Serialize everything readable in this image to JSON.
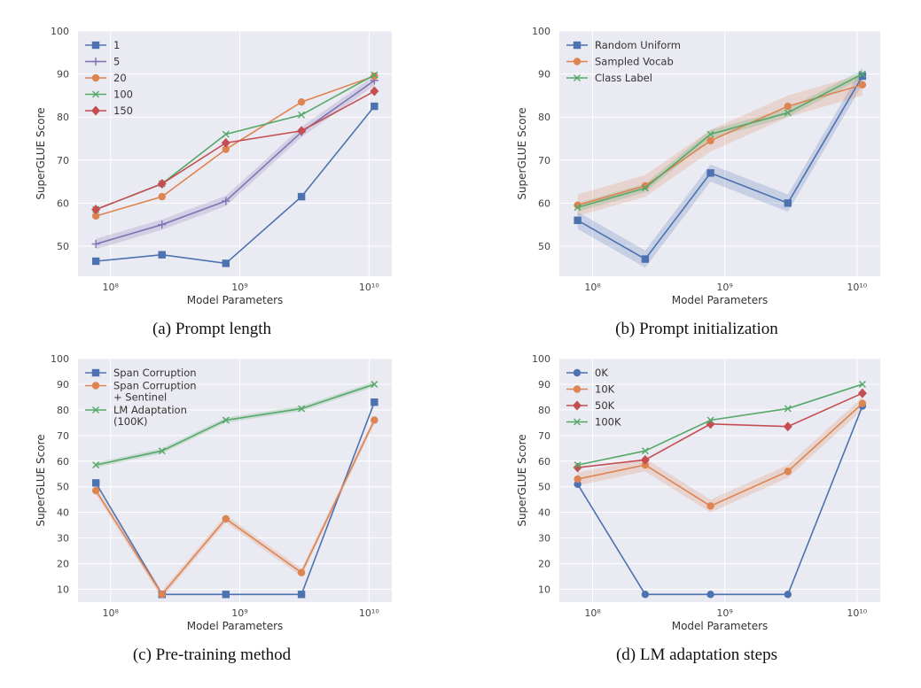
{
  "chart_data": [
    {
      "type": "line",
      "caption": "(a) Prompt length",
      "xlabel": "Model Parameters",
      "ylabel": "SuperGLUE Score",
      "xscale": "log",
      "x": [
        77000000,
        250000000,
        780000000,
        3000000000,
        11000000000
      ],
      "x_ticks": [
        {
          "value": 100000000,
          "label": "10⁸"
        },
        {
          "value": 1000000000,
          "label": "10⁹"
        },
        {
          "value": 10000000000,
          "label": "10¹⁰"
        }
      ],
      "ylim": [
        43,
        100
      ],
      "y_ticks": [
        50,
        60,
        70,
        80,
        90,
        100
      ],
      "grid": true,
      "legend_position": "top-left",
      "series": [
        {
          "name": "1",
          "marker": "square",
          "color": "#4c72b0",
          "values": [
            46.5,
            48,
            46,
            61.5,
            82.5
          ]
        },
        {
          "name": "5",
          "marker": "plus",
          "color": "#8172b3",
          "band": 1.2,
          "values": [
            50.5,
            55,
            60.5,
            76.5,
            88.5
          ]
        },
        {
          "name": "20",
          "marker": "circle",
          "color": "#dd8452",
          "values": [
            57,
            61.5,
            72.5,
            83.5,
            89.5
          ]
        },
        {
          "name": "100",
          "marker": "x",
          "color": "#55a868",
          "values": [
            58.5,
            64.5,
            76,
            80.5,
            89.8
          ]
        },
        {
          "name": "150",
          "marker": "diamond",
          "color": "#c44e52",
          "values": [
            58.5,
            64.5,
            74,
            76.8,
            86
          ]
        }
      ]
    },
    {
      "type": "line",
      "caption": "(b) Prompt initialization",
      "xlabel": "Model Parameters",
      "ylabel": "SuperGLUE Score",
      "xscale": "log",
      "x": [
        77000000,
        250000000,
        780000000,
        3000000000,
        11000000000
      ],
      "x_ticks": [
        {
          "value": 100000000,
          "label": "10⁸"
        },
        {
          "value": 1000000000,
          "label": "10⁹"
        },
        {
          "value": 10000000000,
          "label": "10¹⁰"
        }
      ],
      "ylim": [
        43,
        100
      ],
      "y_ticks": [
        50,
        60,
        70,
        80,
        90,
        100
      ],
      "grid": true,
      "legend_position": "top-left",
      "series": [
        {
          "name": "Random Uniform",
          "marker": "square",
          "color": "#4c72b0",
          "band": 2,
          "values": [
            56,
            47,
            67,
            60,
            89.5
          ]
        },
        {
          "name": "Sampled Vocab",
          "marker": "circle",
          "color": "#dd8452",
          "band": 2.5,
          "values": [
            59.5,
            64,
            74.5,
            82.5,
            87.5
          ]
        },
        {
          "name": "Class Label",
          "marker": "x",
          "color": "#55a868",
          "band": 1,
          "values": [
            59,
            63.5,
            76,
            81,
            90
          ]
        }
      ]
    },
    {
      "type": "line",
      "caption": "(c) Pre-training method",
      "xlabel": "Model Parameters",
      "ylabel": "SuperGLUE Score",
      "xscale": "log",
      "x": [
        77000000,
        250000000,
        780000000,
        3000000000,
        11000000000
      ],
      "x_ticks": [
        {
          "value": 100000000,
          "label": "10⁸"
        },
        {
          "value": 1000000000,
          "label": "10⁹"
        },
        {
          "value": 10000000000,
          "label": "10¹⁰"
        }
      ],
      "ylim": [
        5,
        100
      ],
      "y_ticks": [
        10,
        20,
        30,
        40,
        50,
        60,
        70,
        80,
        90,
        100
      ],
      "grid": true,
      "legend_position": "top-left",
      "series": [
        {
          "name": "Span Corruption",
          "marker": "square",
          "color": "#4c72b0",
          "values": [
            51.5,
            8,
            8,
            8,
            83
          ]
        },
        {
          "name": "Span Corruption\n+ Sentinel",
          "marker": "circle",
          "color": "#dd8452",
          "band": 1.5,
          "values": [
            48.5,
            8,
            37.5,
            16.5,
            76
          ]
        },
        {
          "name": "LM Adaptation\n(100K)",
          "marker": "x",
          "color": "#55a868",
          "band": 1,
          "values": [
            58.5,
            64,
            76,
            80.5,
            90
          ]
        }
      ]
    },
    {
      "type": "line",
      "caption": "(d) LM adaptation steps",
      "xlabel": "Model Parameters",
      "ylabel": "SuperGLUE Score",
      "xscale": "log",
      "x": [
        77000000,
        250000000,
        780000000,
        3000000000,
        11000000000
      ],
      "x_ticks": [
        {
          "value": 100000000,
          "label": "10⁸"
        },
        {
          "value": 1000000000,
          "label": "10⁹"
        },
        {
          "value": 10000000000,
          "label": "10¹⁰"
        }
      ],
      "ylim": [
        5,
        100
      ],
      "y_ticks": [
        10,
        20,
        30,
        40,
        50,
        60,
        70,
        80,
        90,
        100
      ],
      "grid": true,
      "legend_position": "top-left",
      "series": [
        {
          "name": "0K",
          "marker": "circle",
          "color": "#4c72b0",
          "values": [
            51,
            8,
            8,
            8,
            81.5
          ]
        },
        {
          "name": "10K",
          "marker": "circle",
          "color": "#dd8452",
          "band": 2.5,
          "values": [
            53,
            58.5,
            42.5,
            56,
            82.5
          ]
        },
        {
          "name": "50K",
          "marker": "diamond",
          "color": "#c44e52",
          "values": [
            57.5,
            60.5,
            74.5,
            73.5,
            86.5
          ]
        },
        {
          "name": "100K",
          "marker": "x",
          "color": "#55a868",
          "values": [
            58.5,
            64,
            76,
            80.5,
            90
          ]
        }
      ]
    }
  ]
}
